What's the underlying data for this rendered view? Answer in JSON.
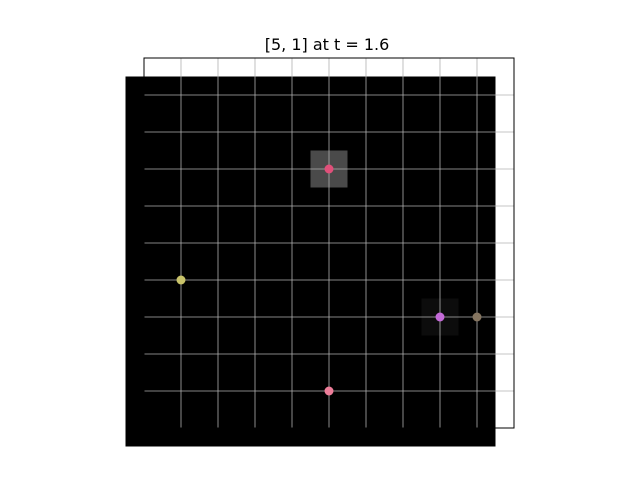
{
  "chart_data": {
    "type": "scatter",
    "title": "[5, 1] at t = 1.6",
    "xlabel": "",
    "ylabel": "",
    "xlim": [
      0,
      10
    ],
    "ylim": [
      0,
      10
    ],
    "grid": true,
    "x_ticks": [
      0,
      1,
      2,
      3,
      4,
      5,
      6,
      7,
      8,
      9
    ],
    "y_ticks": [
      0,
      1,
      2,
      3,
      4,
      5,
      6,
      7,
      8,
      9
    ],
    "background_grid": {
      "type": "heatmap",
      "x_range": [
        -0.5,
        9.5
      ],
      "y_range": [
        -0.5,
        9.5
      ],
      "base_color": "#000000",
      "highlighted_cells": [
        {
          "x": 5,
          "y": 7,
          "color": "#4a4a4a"
        },
        {
          "x": 8,
          "y": 3,
          "color": "#0c0c0c"
        }
      ]
    },
    "points": [
      {
        "x": 1,
        "y": 4,
        "color": "#c9c36a"
      },
      {
        "x": 5,
        "y": 7,
        "color": "#e0507a"
      },
      {
        "x": 8,
        "y": 3,
        "color": "#c46ad8"
      },
      {
        "x": 9,
        "y": 3,
        "color": "#857560"
      },
      {
        "x": 5,
        "y": 1,
        "color": "#ee7e9a"
      }
    ]
  }
}
